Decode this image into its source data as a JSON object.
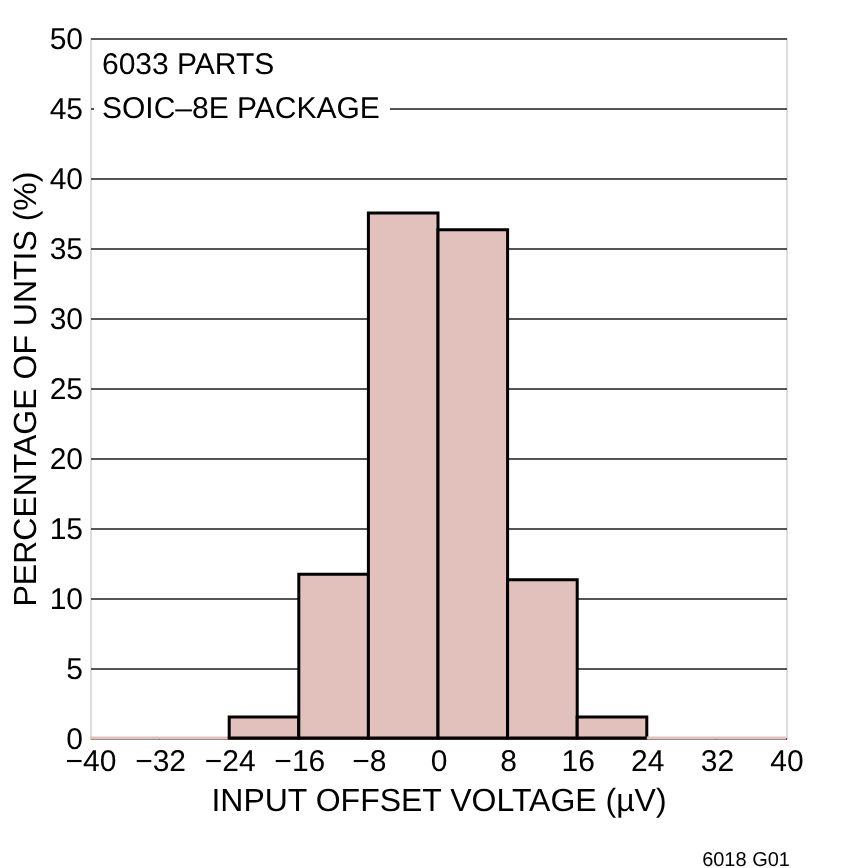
{
  "chart_data": {
    "type": "histogram",
    "xlabel": "INPUT OFFSET VOLTAGE (µV)",
    "ylabel": "PERCENTAGE OF UNTIS (%)",
    "bins": [
      -40,
      -32,
      -24,
      -16,
      -8,
      0,
      8,
      16,
      24,
      32,
      40
    ],
    "values": [
      0,
      0,
      1.5,
      11.7,
      37.5,
      36.3,
      11.3,
      1.5,
      0,
      0
    ],
    "color": "#e2c1bc",
    "xlim": [
      -40,
      40
    ],
    "xticks": [
      -40,
      -32,
      -24,
      -16,
      -8,
      0,
      8,
      16,
      24,
      32,
      40
    ],
    "ylim": [
      0,
      50
    ],
    "yticks": [
      0,
      5,
      10,
      15,
      20,
      25,
      30,
      35,
      40,
      45,
      50
    ],
    "grid": "y",
    "annotations": [
      "6033 PARTS",
      "SOIC–8E PACKAGE",
      "6018 G01"
    ]
  }
}
